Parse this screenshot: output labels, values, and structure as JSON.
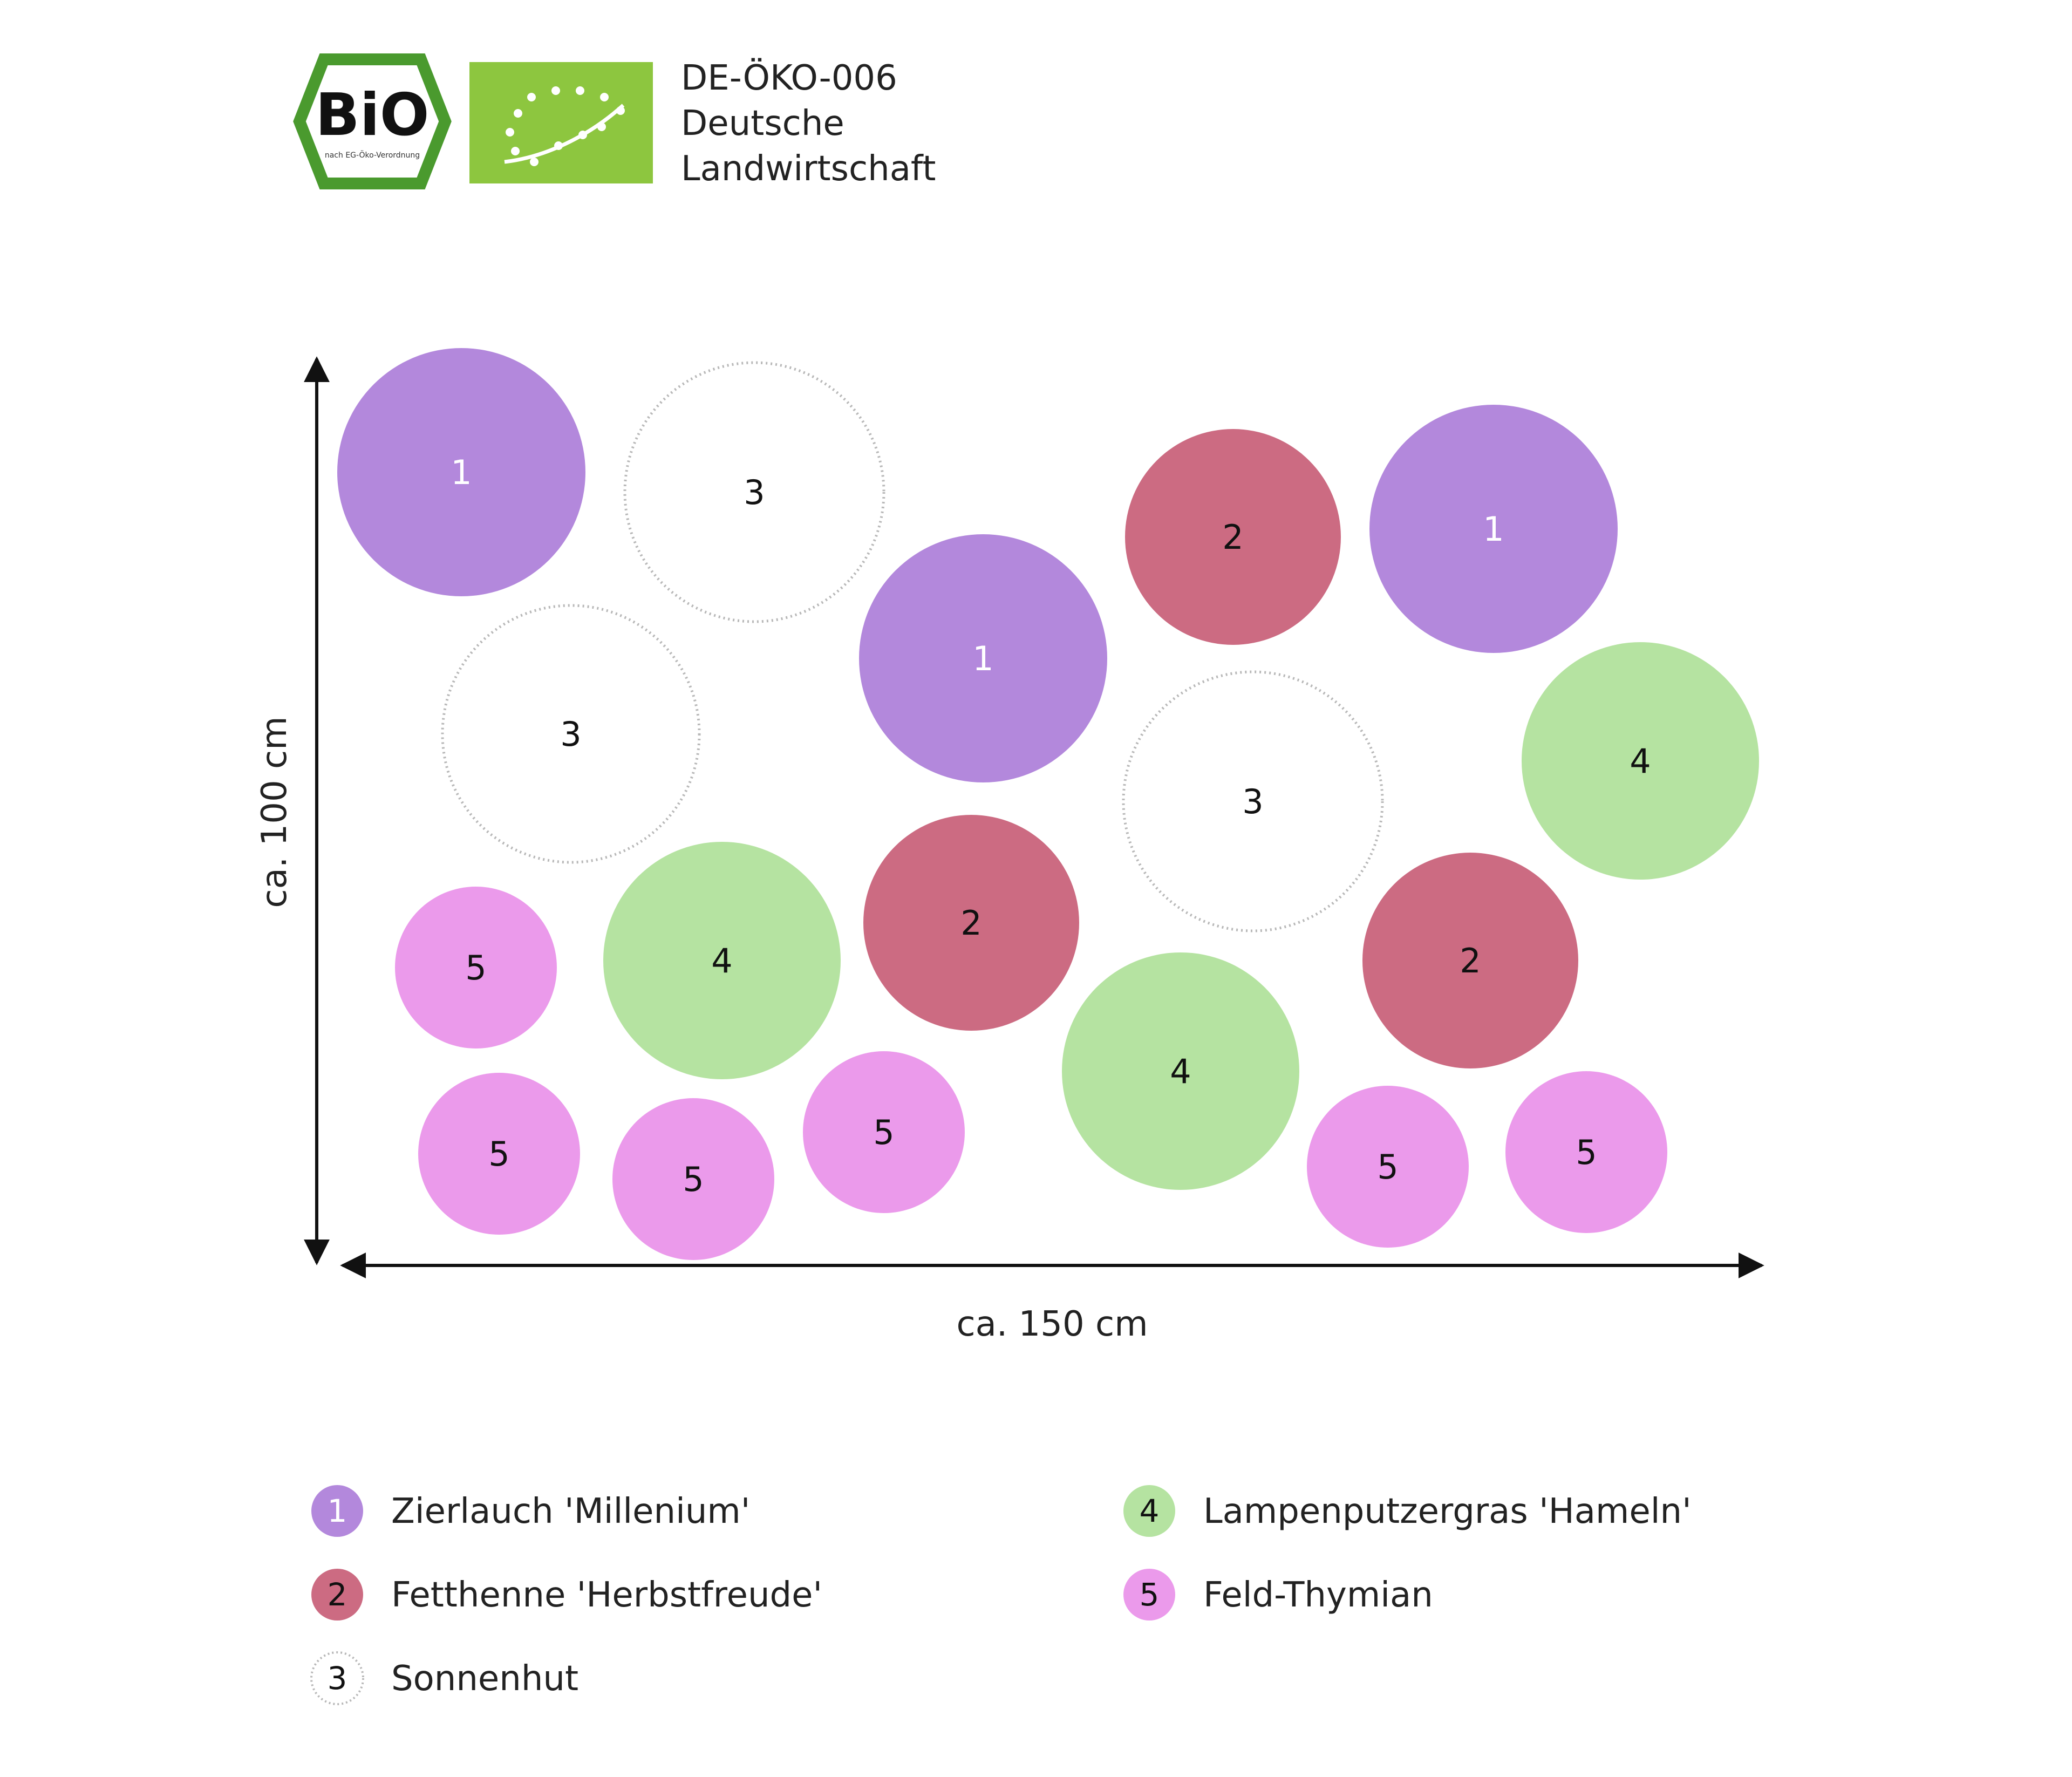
{
  "certification": {
    "code": "DE-ÖKO-006",
    "origin_line1": "Deutsche",
    "origin_line2": "Landwirtschaft",
    "bio_logo_text": "BiO",
    "bio_logo_subtext": "nach EG-Öko-Verordnung",
    "bio_logo_icon": "bio-hexagon-seal",
    "eu_logo_icon": "eu-organic-leaf",
    "colors": {
      "bio_green": "#4a9a2e",
      "eu_green": "#8dc63f"
    }
  },
  "dimensions": {
    "width_label": "ca. 150 cm",
    "height_label": "ca. 100 cm"
  },
  "plant_types": {
    "1": {
      "name": "Zierlauch 'Millenium'",
      "color": "#b388dc"
    },
    "2": {
      "name": "Fetthenne 'Herbstfreude'",
      "color": "#cc6b82"
    },
    "3": {
      "name": "Sonnenhut",
      "color": "#ffffff"
    },
    "4": {
      "name": "Lampenputzergras 'Hameln'",
      "color": "#b5e3a1"
    },
    "5": {
      "name": "Feld-Thymian",
      "color": "#eb9aeb"
    }
  },
  "legend": [
    {
      "number": "1",
      "name": "Zierlauch 'Millenium'"
    },
    {
      "number": "2",
      "name": "Fetthenne 'Herbstfreude'"
    },
    {
      "number": "3",
      "name": "Sonnenhut"
    },
    {
      "number": "4",
      "name": "Lampenputzergras 'Hameln'"
    },
    {
      "number": "5",
      "name": "Feld-Thymian"
    }
  ],
  "plants": [
    {
      "type": "1",
      "label": "1"
    },
    {
      "type": "3",
      "label": "3"
    },
    {
      "type": "2",
      "label": "2"
    },
    {
      "type": "1",
      "label": "1"
    },
    {
      "type": "3",
      "label": "3"
    },
    {
      "type": "1",
      "label": "1"
    },
    {
      "type": "3",
      "label": "3"
    },
    {
      "type": "4",
      "label": "4"
    },
    {
      "type": "5",
      "label": "5"
    },
    {
      "type": "4",
      "label": "4"
    },
    {
      "type": "2",
      "label": "2"
    },
    {
      "type": "2",
      "label": "2"
    },
    {
      "type": "4",
      "label": "4"
    },
    {
      "type": "5",
      "label": "5"
    },
    {
      "type": "5",
      "label": "5"
    },
    {
      "type": "5",
      "label": "5"
    },
    {
      "type": "5",
      "label": "5"
    },
    {
      "type": "5",
      "label": "5"
    }
  ]
}
